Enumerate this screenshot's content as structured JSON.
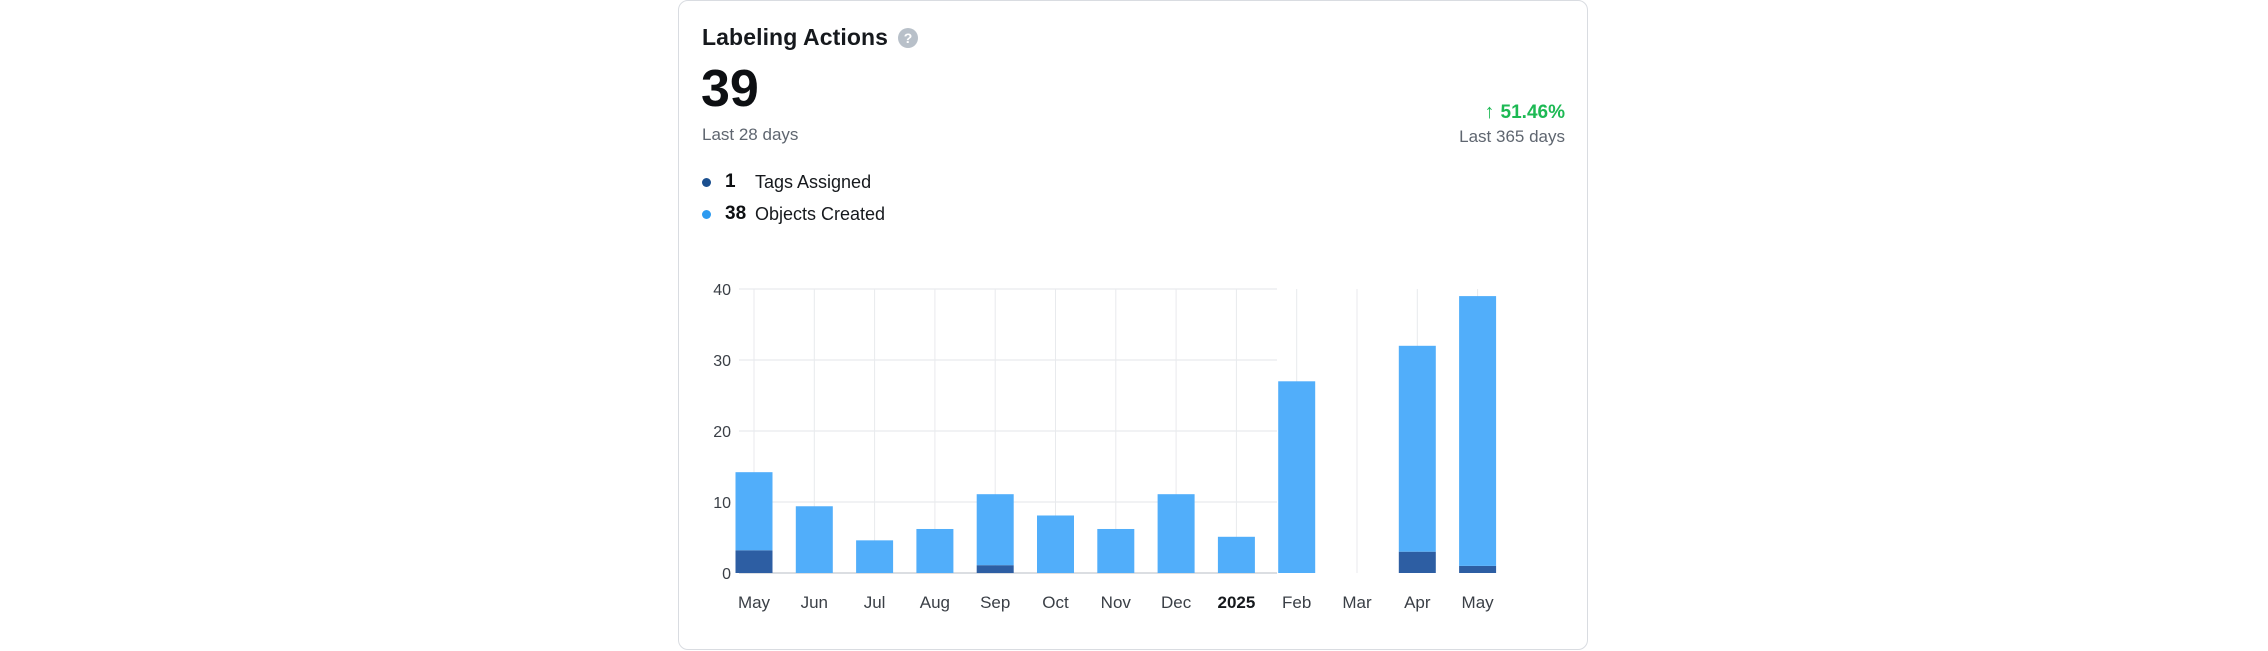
{
  "card": {
    "title": "Labeling Actions",
    "help_icon": "?",
    "total": "39",
    "total_period": "Last 28 days",
    "change": "51.46%",
    "change_icon": "↑",
    "change_period": "Last 365 days"
  },
  "legend": [
    {
      "count": "1",
      "label": "Tags Assigned",
      "color": "#1b4f8f"
    },
    {
      "count": "38",
      "label": "Objects Created",
      "color": "#2e9bf0"
    }
  ],
  "chart_data": {
    "type": "bar",
    "stacked": true,
    "categories": [
      "May",
      "Jun",
      "Jul",
      "Aug",
      "Sep",
      "Oct",
      "Nov",
      "Dec",
      "2025",
      "Feb",
      "Mar",
      "Apr",
      "May"
    ],
    "bold_categories": [
      "2025"
    ],
    "series": [
      {
        "name": "Tags Assigned",
        "color": "#2d5ea3",
        "values": [
          3.2,
          0,
          0,
          0,
          1.1,
          0,
          0,
          0,
          0,
          0,
          0,
          3,
          1
        ]
      },
      {
        "name": "Objects Created",
        "color": "#51aefa",
        "values": [
          11,
          9.4,
          4.6,
          6.2,
          10,
          8.1,
          6.2,
          11.1,
          5.1,
          27,
          0,
          29,
          38
        ]
      }
    ],
    "y_ticks": [
      "0",
      "10",
      "20",
      "30",
      "40"
    ],
    "ylim": [
      0,
      40
    ],
    "grid": true,
    "legend_position": "top-left"
  }
}
